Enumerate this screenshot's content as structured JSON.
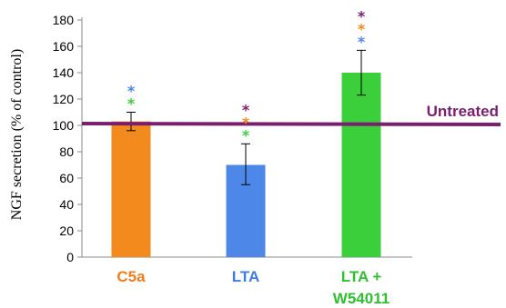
{
  "chart_data": {
    "type": "bar",
    "ylabel": "NGF secretion (% of control)",
    "ylim": [
      0,
      180
    ],
    "yticks": [
      0,
      20,
      40,
      60,
      80,
      100,
      120,
      140,
      160,
      180
    ],
    "grid": false,
    "categories": [
      {
        "label": "C5a",
        "lines": [
          "C5a"
        ],
        "color": "#f28a1e",
        "label_color": "#f07c1c"
      },
      {
        "label": "LTA",
        "lines": [
          "LTA"
        ],
        "color": "#4d87e8",
        "label_color": "#3f7ce6"
      },
      {
        "label": "LTA + W54011",
        "lines": [
          "LTA +",
          "W54011"
        ],
        "color": "#3ccf3c",
        "label_color": "#2fbf2f"
      }
    ],
    "values": [
      103,
      70,
      140
    ],
    "error_low": [
      96,
      55,
      123
    ],
    "error_high": [
      110,
      86,
      157
    ],
    "significance_marks": [
      {
        "category": "C5a",
        "marks": [
          {
            "symbol": "*",
            "color": "#4d87e8"
          },
          {
            "symbol": "*",
            "color": "#3ccf3c"
          }
        ]
      },
      {
        "category": "LTA",
        "marks": [
          {
            "symbol": "*",
            "color": "#7a1f6e"
          },
          {
            "symbol": "*",
            "color": "#f28a1e"
          },
          {
            "symbol": "*",
            "color": "#3ccf3c"
          }
        ]
      },
      {
        "category": "LTA + W54011",
        "marks": [
          {
            "symbol": "*",
            "color": "#7a1f6e"
          },
          {
            "symbol": "*",
            "color": "#f28a1e"
          },
          {
            "symbol": "*",
            "color": "#4d87e8"
          }
        ]
      }
    ],
    "reference_line": {
      "label": "Untreated",
      "value": 100,
      "color": "#7a1f6e"
    }
  }
}
